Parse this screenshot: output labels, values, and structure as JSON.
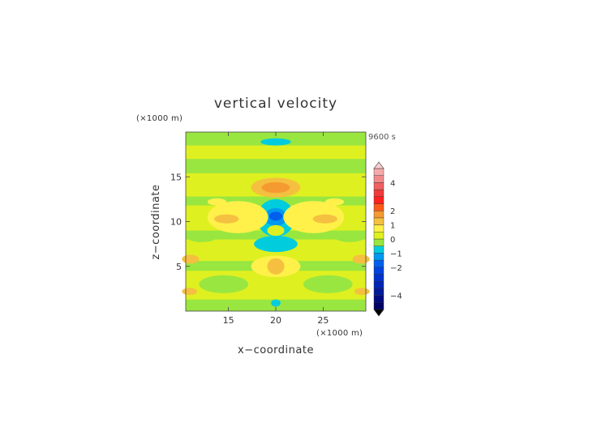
{
  "chart_data": {
    "type": "heatmap",
    "title": "vertical velocity",
    "xlabel": "x−coordinate",
    "ylabel": "z−coordinate",
    "x_unit": "(×1000 m)",
    "y_unit": "(×1000 m)",
    "time_label": "9600 s",
    "xlim": [
      10.5,
      29.5
    ],
    "ylim": [
      0,
      20
    ],
    "x_ticks": [
      15,
      20,
      25
    ],
    "y_ticks": [
      5,
      10,
      15
    ],
    "colorbar": {
      "levels": [
        {
          "from": -5.0,
          "to": -4.5,
          "color": "#000066"
        },
        {
          "from": -4.5,
          "to": -4.0,
          "color": "#000a80"
        },
        {
          "from": -4.0,
          "to": -3.5,
          "color": "#001a99"
        },
        {
          "from": -3.5,
          "to": -3.0,
          "color": "#0026b3"
        },
        {
          "from": -3.0,
          "to": -2.5,
          "color": "#0033cc"
        },
        {
          "from": -2.5,
          "to": -2.0,
          "color": "#0044dd"
        },
        {
          "from": -2.0,
          "to": -1.5,
          "color": "#0060ee"
        },
        {
          "from": -1.5,
          "to": -1.0,
          "color": "#0099f0"
        },
        {
          "from": -1.0,
          "to": -0.5,
          "color": "#00ccdd"
        },
        {
          "from": -0.5,
          "to": 0.0,
          "color": "#99e640"
        },
        {
          "from": 0.0,
          "to": 0.5,
          "color": "#dff020"
        },
        {
          "from": 0.5,
          "to": 1.0,
          "color": "#fff04a"
        },
        {
          "from": 1.0,
          "to": 1.5,
          "color": "#f5c040"
        },
        {
          "from": 1.5,
          "to": 2.0,
          "color": "#f59a30"
        },
        {
          "from": 2.0,
          "to": 2.5,
          "color": "#ff5a1a"
        },
        {
          "from": 2.5,
          "to": 3.0,
          "color": "#ff2020"
        },
        {
          "from": 3.0,
          "to": 3.5,
          "color": "#f23a3a"
        },
        {
          "from": 3.5,
          "to": 4.0,
          "color": "#f06060"
        },
        {
          "from": 4.0,
          "to": 4.5,
          "color": "#f08a8a"
        },
        {
          "from": 4.5,
          "to": 5.0,
          "color": "#f5aaaa"
        }
      ],
      "ticks": [
        {
          "value": 4,
          "label": "4"
        },
        {
          "value": 2,
          "label": "2"
        },
        {
          "value": 1,
          "label": "1"
        },
        {
          "value": 0,
          "label": "0"
        },
        {
          "value": -1,
          "label": "−1"
        },
        {
          "value": -2,
          "label": "−2"
        },
        {
          "value": -4,
          "label": "−4"
        }
      ],
      "range": [
        -5,
        5
      ],
      "extend": "both"
    },
    "background_value": 0.25,
    "bands": [
      {
        "z": [
          0.0,
          1.3
        ],
        "value": -0.2
      },
      {
        "z": [
          4.5,
          5.6
        ],
        "value": -0.2
      },
      {
        "z": [
          8.0,
          9.0
        ],
        "value": -0.2
      },
      {
        "z": [
          11.8,
          12.8
        ],
        "value": -0.2
      },
      {
        "z": [
          15.4,
          17.0
        ],
        "value": -0.2
      },
      {
        "z": [
          18.5,
          20.0
        ],
        "value": -0.2
      }
    ],
    "features": [
      {
        "x": 20,
        "z": 18.9,
        "rx": 1.6,
        "rz": 0.4,
        "value": -0.6
      },
      {
        "x": 20,
        "z": 13.8,
        "rx": 2.6,
        "rz": 1.1,
        "value": 1.2
      },
      {
        "x": 20,
        "z": 13.8,
        "rx": 1.5,
        "rz": 0.6,
        "value": 1.6
      },
      {
        "x": 20,
        "z": 10.4,
        "rx": 2.0,
        "rz": 2.1,
        "value": -0.6
      },
      {
        "x": 20,
        "z": 10.5,
        "rx": 1.2,
        "rz": 1.0,
        "value": -1.1
      },
      {
        "x": 20,
        "z": 10.6,
        "rx": 0.7,
        "rz": 0.5,
        "value": -1.6
      },
      {
        "x": 20,
        "z": 9.0,
        "rx": 0.9,
        "rz": 0.6,
        "value": 0.3
      },
      {
        "x": 20,
        "z": 7.5,
        "rx": 2.3,
        "rz": 0.9,
        "value": -0.6
      },
      {
        "x": 20,
        "z": 5.0,
        "rx": 2.6,
        "rz": 1.2,
        "value": 0.7
      },
      {
        "x": 20,
        "z": 5.0,
        "rx": 0.9,
        "rz": 0.9,
        "value": 1.2
      },
      {
        "x": 20,
        "z": 0.9,
        "rx": 0.5,
        "rz": 0.4,
        "value": -0.6
      },
      {
        "x": 16.0,
        "z": 10.5,
        "rx": 3.2,
        "rz": 1.8,
        "value": 0.7
      },
      {
        "x": 24.0,
        "z": 10.5,
        "rx": 3.2,
        "rz": 1.8,
        "value": 0.7
      },
      {
        "x": 14.8,
        "z": 10.3,
        "rx": 1.3,
        "rz": 0.5,
        "value": 1.2
      },
      {
        "x": 25.2,
        "z": 10.3,
        "rx": 1.3,
        "rz": 0.5,
        "value": 1.2
      },
      {
        "x": 13.8,
        "z": 12.2,
        "rx": 1.0,
        "rz": 0.4,
        "value": 0.7
      },
      {
        "x": 26.2,
        "z": 12.2,
        "rx": 1.0,
        "rz": 0.4,
        "value": 0.7
      },
      {
        "x": 11.0,
        "z": 5.8,
        "rx": 0.9,
        "rz": 0.5,
        "value": 1.2
      },
      {
        "x": 29.0,
        "z": 5.8,
        "rx": 0.9,
        "rz": 0.5,
        "value": 1.2
      },
      {
        "x": 10.9,
        "z": 2.2,
        "rx": 0.8,
        "rz": 0.4,
        "value": 1.2
      },
      {
        "x": 29.1,
        "z": 2.2,
        "rx": 0.8,
        "rz": 0.4,
        "value": 1.2
      },
      {
        "x": 14.5,
        "z": 3.0,
        "rx": 2.6,
        "rz": 1.0,
        "value": -0.2
      },
      {
        "x": 25.5,
        "z": 3.0,
        "rx": 2.6,
        "rz": 1.0,
        "value": -0.2
      },
      {
        "x": 12.2,
        "z": 8.3,
        "rx": 1.6,
        "rz": 0.6,
        "value": -0.2
      },
      {
        "x": 27.8,
        "z": 8.3,
        "rx": 1.6,
        "rz": 0.6,
        "value": -0.2
      }
    ]
  }
}
